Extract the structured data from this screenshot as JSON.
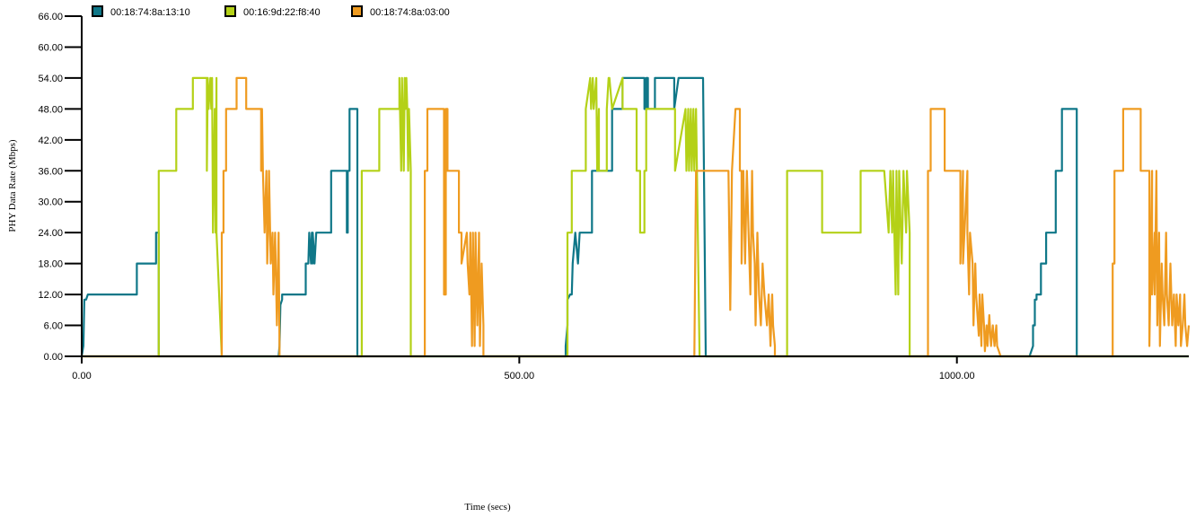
{
  "chart_data": {
    "type": "line",
    "xlabel": "Time (secs)",
    "ylabel": "PHY Data Rate (Mbps)",
    "xlim": [
      0,
      1265
    ],
    "ylim": [
      0,
      66
    ],
    "x_ticks": [
      0,
      500,
      1000
    ],
    "x_tick_labels": [
      "0.00",
      "500.00",
      "1000.00"
    ],
    "y_ticks": [
      0,
      6,
      12,
      18,
      24,
      30,
      36,
      42,
      48,
      54,
      60,
      66
    ],
    "y_tick_labels": [
      "0.00",
      "6.00",
      "12.00",
      "18.00",
      "24.00",
      "30.00",
      "36.00",
      "42.00",
      "48.00",
      "54.00",
      "60.00",
      "66.00"
    ],
    "grid": false,
    "legend_position": "top",
    "series": [
      {
        "name": "00:18:74:8a:13:10",
        "color": "#0f7788",
        "x": [
          0,
          2,
          3,
          5,
          7,
          10,
          63,
          63,
          85,
          85,
          88,
          88,
          225,
          226,
          227,
          229,
          229,
          236,
          236,
          256,
          256,
          259,
          260,
          262,
          263,
          264,
          264,
          266,
          268,
          268,
          285,
          285,
          303,
          303,
          304,
          304,
          306,
          306,
          309,
          309,
          315,
          315,
          316,
          318,
          318,
          553,
          553,
          555,
          555,
          558,
          558,
          560,
          561,
          564,
          567,
          569,
          574,
          583,
          583,
          606,
          606,
          618,
          618,
          643,
          643,
          645,
          645,
          647,
          647,
          655,
          655,
          677,
          677,
          682,
          687,
          699,
          710,
          713,
          713,
          738,
          738,
          745,
          745,
          763,
          763,
          767,
          767,
          772,
          776,
          776,
          778,
          778,
          781,
          781,
          790,
          790,
          805,
          805,
          823,
          823,
          837,
          837,
          895,
          895,
          963,
          966,
          969,
          986,
          986,
          1083,
          1083,
          1087,
          1087,
          1089,
          1089,
          1091,
          1091,
          1096,
          1096,
          1102,
          1102,
          1107,
          1107,
          1113,
          1113,
          1120,
          1120,
          1125,
          1125,
          1137,
          1137,
          1145,
          1145,
          1159,
          1159,
          1160,
          1160,
          1163,
          1163,
          1176,
          1176,
          1210,
          1210,
          1265
        ],
        "y": [
          0,
          2,
          11,
          11,
          12,
          12,
          12,
          18,
          18,
          24,
          24,
          0,
          0,
          2,
          10,
          11,
          12,
          12,
          12,
          12,
          18,
          18,
          24,
          18,
          24,
          18,
          24,
          18,
          24,
          24,
          24,
          36,
          36,
          24,
          24,
          36,
          36,
          48,
          48,
          48,
          48,
          0,
          0,
          0,
          0,
          0,
          2,
          6,
          11,
          12,
          12,
          12,
          18,
          24,
          18,
          24,
          24,
          24,
          36,
          36,
          48,
          48,
          54,
          54,
          48,
          48,
          54,
          54,
          48,
          48,
          54,
          54,
          48,
          54,
          54,
          54,
          54,
          0,
          0,
          0,
          0,
          0,
          0,
          0,
          0,
          0,
          0,
          0,
          0,
          0,
          0,
          0,
          0,
          0,
          0,
          0,
          0,
          0,
          0,
          0,
          0,
          0,
          0,
          0,
          0,
          0,
          0,
          0,
          0,
          0,
          0,
          2,
          6,
          6,
          11,
          11,
          12,
          12,
          18,
          18,
          24,
          24,
          24,
          24,
          36,
          36,
          48,
          48,
          48,
          48,
          0,
          0,
          0,
          0,
          0,
          0,
          0,
          0,
          0,
          0,
          0,
          0,
          0,
          0
        ]
      },
      {
        "name": "00:16:9d:22:f8:40",
        "color": "#b4d117",
        "x": [
          0,
          88,
          88,
          90,
          90,
          108,
          108,
          127,
          127,
          143,
          143,
          144,
          145,
          147,
          148,
          149,
          150,
          152,
          153,
          154,
          154,
          160,
          160,
          318,
          318,
          320,
          320,
          340,
          340,
          363,
          363,
          365,
          366,
          368,
          369,
          370,
          371,
          372,
          373,
          374,
          376,
          376,
          392,
          553,
          553,
          555,
          555,
          560,
          560,
          576,
          576,
          581,
          582,
          584,
          585,
          588,
          589,
          591,
          591,
          600,
          600,
          602,
          603,
          606,
          606,
          618,
          618,
          634,
          634,
          638,
          638,
          643,
          643,
          645,
          645,
          653,
          653,
          678,
          678,
          690,
          691,
          693,
          694,
          696,
          697,
          699,
          700,
          702,
          703,
          706,
          706,
          751,
          751,
          757,
          757,
          763,
          763,
          790,
          790,
          806,
          806,
          832,
          832,
          846,
          846,
          890,
          890,
          917,
          917,
          922,
          924,
          926,
          927,
          930,
          931,
          933,
          934,
          937,
          939,
          942,
          943,
          946,
          946,
          964,
          964,
          1089,
          1089,
          1113,
          1113,
          1131,
          1131,
          1145,
          1145,
          1147,
          1147,
          1150,
          1150,
          1155,
          1155,
          1178,
          1178,
          1265
        ],
        "y": [
          0,
          0,
          36,
          36,
          36,
          36,
          48,
          48,
          54,
          54,
          36,
          54,
          48,
          54,
          48,
          54,
          24,
          48,
          24,
          54,
          24,
          0,
          0,
          0,
          0,
          0,
          36,
          36,
          48,
          48,
          54,
          36,
          54,
          36,
          54,
          48,
          54,
          48,
          36,
          48,
          36,
          0,
          0,
          0,
          0,
          0,
          24,
          24,
          36,
          36,
          48,
          54,
          48,
          54,
          48,
          54,
          36,
          48,
          36,
          36,
          48,
          54,
          54,
          48,
          48,
          54,
          48,
          48,
          36,
          36,
          24,
          24,
          36,
          36,
          48,
          48,
          48,
          48,
          36,
          48,
          36,
          48,
          36,
          48,
          36,
          48,
          36,
          48,
          36,
          0,
          0,
          0,
          0,
          0,
          0,
          0,
          0,
          0,
          0,
          0,
          36,
          36,
          36,
          36,
          24,
          24,
          36,
          36,
          36,
          24,
          36,
          24,
          36,
          12,
          36,
          12,
          36,
          18,
          36,
          24,
          36,
          24,
          0,
          0,
          0,
          0,
          0,
          0,
          0,
          0,
          0,
          0,
          0,
          0,
          0,
          0,
          0,
          0,
          0,
          0,
          0,
          0
        ]
      },
      {
        "name": "00:18:74:8a:03:00",
        "color": "#ef9b20",
        "x": [
          0,
          160,
          160,
          162,
          162,
          165,
          165,
          177,
          177,
          188,
          188,
          205,
          205,
          206,
          207,
          209,
          211,
          212,
          213,
          214,
          216,
          218,
          219,
          221,
          223,
          225,
          226,
          226,
          230,
          392,
          392,
          395,
          395,
          414,
          414,
          416,
          416,
          418,
          418,
          431,
          431,
          434,
          434,
          440,
          441,
          443,
          444,
          446,
          447,
          449,
          450,
          452,
          454,
          455,
          457,
          459,
          459,
          700,
          700,
          702,
          702,
          739,
          739,
          741,
          741,
          743,
          743,
          747,
          747,
          752,
          752,
          754,
          754,
          756,
          758,
          760,
          762,
          764,
          766,
          767,
          769,
          770,
          772,
          774,
          776,
          778,
          780,
          783,
          785,
          787,
          789,
          790,
          792,
          792,
          800,
          967,
          967,
          970,
          970,
          986,
          986,
          1004,
          1004,
          1007,
          1007,
          1012,
          1012,
          1014,
          1015,
          1018,
          1019,
          1021,
          1022,
          1025,
          1026,
          1028,
          1029,
          1031,
          1032,
          1034,
          1035,
          1037,
          1039,
          1041,
          1043,
          1045,
          1046,
          1048,
          1050,
          1050,
          1058,
          1178,
          1178,
          1180,
          1180,
          1190,
          1190,
          1210,
          1210,
          1220,
          1220,
          1223,
          1223,
          1226,
          1226,
          1228,
          1229,
          1231,
          1232,
          1234,
          1235,
          1237,
          1239,
          1240,
          1242,
          1244,
          1246,
          1248,
          1250,
          1251,
          1253,
          1255,
          1256,
          1258,
          1260,
          1261,
          1263,
          1265
        ],
        "y": [
          0,
          0,
          24,
          24,
          36,
          36,
          48,
          48,
          54,
          54,
          48,
          48,
          36,
          48,
          36,
          24,
          36,
          18,
          24,
          36,
          18,
          24,
          12,
          24,
          6,
          24,
          2,
          0,
          0,
          0,
          36,
          36,
          48,
          48,
          12,
          12,
          48,
          48,
          36,
          36,
          24,
          24,
          18,
          24,
          18,
          12,
          24,
          2,
          24,
          2,
          24,
          6,
          24,
          2,
          18,
          6,
          0,
          0,
          0,
          36,
          36,
          36,
          36,
          9,
          9,
          36,
          36,
          48,
          48,
          48,
          36,
          36,
          18,
          36,
          18,
          36,
          24,
          12,
          36,
          24,
          18,
          6,
          24,
          12,
          6,
          18,
          12,
          6,
          12,
          2,
          12,
          6,
          2,
          0,
          0,
          0,
          36,
          36,
          48,
          48,
          36,
          36,
          18,
          36,
          18,
          36,
          24,
          12,
          24,
          18,
          6,
          18,
          12,
          4,
          12,
          2,
          12,
          6,
          1,
          6,
          2,
          8,
          2,
          6,
          2,
          6,
          2,
          1,
          0,
          0,
          0,
          0,
          18,
          18,
          36,
          36,
          48,
          48,
          36,
          36,
          2,
          36,
          12,
          24,
          12,
          36,
          6,
          24,
          2,
          18,
          12,
          6,
          24,
          12,
          6,
          18,
          6,
          12,
          2,
          12,
          6,
          12,
          2,
          6,
          12,
          6,
          2,
          6
        ]
      }
    ]
  }
}
